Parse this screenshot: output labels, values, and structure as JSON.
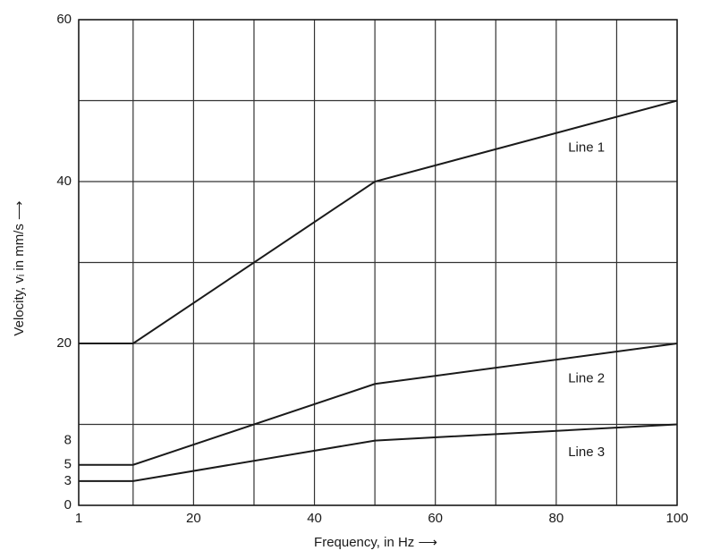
{
  "chart_data": {
    "type": "line",
    "xlabel": "Frequency, in Hz ⟶",
    "ylabel": "Velocity, vᵢ in mm/s ⟶",
    "xlim": [
      1,
      100
    ],
    "xticks": [
      1,
      20,
      40,
      60,
      80,
      100
    ],
    "xminor": [
      10,
      30,
      50,
      70,
      90
    ],
    "ylim": [
      0,
      60
    ],
    "yticks": [
      0,
      3,
      5,
      8,
      20,
      40,
      60
    ],
    "yminor": [
      10,
      30,
      50
    ],
    "grid": true,
    "x": [
      1,
      10,
      50,
      100
    ],
    "series": [
      {
        "name": "Line 1",
        "color": "#1a1a1a",
        "values": [
          20,
          20,
          40,
          50
        ]
      },
      {
        "name": "Line 2",
        "color": "#1a1a1a",
        "values": [
          5,
          5,
          15,
          20
        ]
      },
      {
        "name": "Line 3",
        "color": "#1a1a1a",
        "values": [
          3,
          3,
          8,
          10
        ]
      }
    ]
  }
}
